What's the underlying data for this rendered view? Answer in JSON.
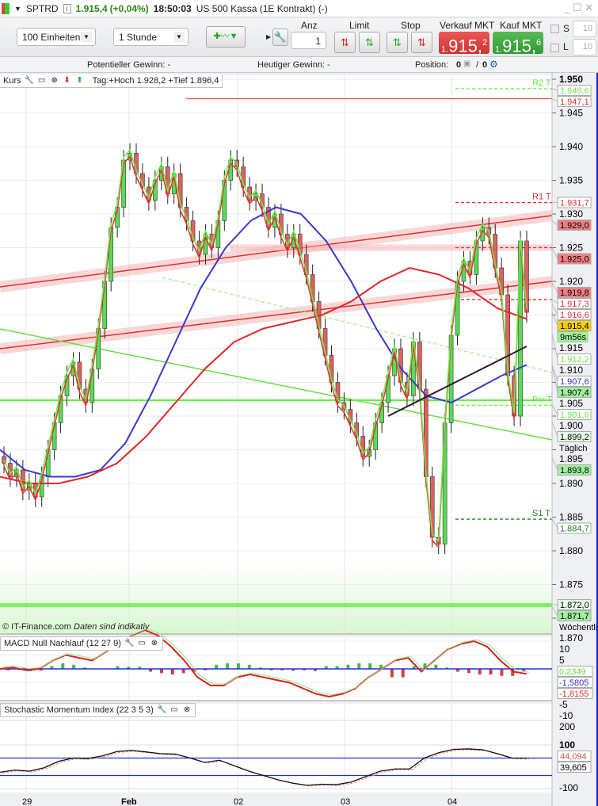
{
  "title": {
    "symbol": "SPTRD",
    "price": "1.915,4",
    "change": "(+0,04%)",
    "time": "18:50:03",
    "instrument": "US 500 Kassa (1E Kontrakt) (-)"
  },
  "toolbar": {
    "units": "100 Einheiten",
    "interval": "1 Stunde",
    "anz_label": "Anz",
    "anz_value": "1",
    "limit_label": "Limit",
    "stop_label": "Stop",
    "sell_label": "Verkauf MKT",
    "sell_prefix": "1.",
    "sell_main": "915,",
    "sell_frac": "2",
    "buy_label": "Kauf MKT",
    "buy_prefix": "1.",
    "buy_main": "915,",
    "buy_frac": "6",
    "s_label": "S",
    "s_value": "10",
    "l_label": "L",
    "l_value": "10"
  },
  "infobar": {
    "potential": "Potentieller Gewinn:  -",
    "today": "Heutiger Gewinn:  -",
    "position": "Position:",
    "pos_a": "0",
    "pos_sep": "/",
    "pos_b": "0"
  },
  "price_panel": {
    "name": "Kurs",
    "daily": "Tag:+Hoch 1.928,2 +Tief 1.896,4",
    "copyright": "© IT-Finance.com",
    "disclaimer": "Daten sind indikativ",
    "axis_ticks": [
      "1.950",
      "1.945",
      "1.940",
      "1.935",
      "1.930",
      "1.925",
      "1.920",
      "1.915",
      "1.910",
      "1.905",
      "1.900",
      "1.895",
      "1.890",
      "1.885",
      "1.880",
      "1.875",
      "1.870"
    ],
    "levels": [
      {
        "text": "1.948,6",
        "price": 1948.6,
        "tag": "R2 T",
        "color": "#66ee44",
        "style": "dash"
      },
      {
        "text": "1.947,1",
        "price": 1947.1,
        "tag": "",
        "color": "#e03030",
        "style": "solid"
      },
      {
        "text": "1.931,7",
        "price": 1931.7,
        "tag": "R1 T",
        "color": "#e03030",
        "style": "dash"
      },
      {
        "text": "1.929,0",
        "price": 1929.0,
        "tag": "",
        "color": "#e03030",
        "style": "none",
        "fill": "#f08080"
      },
      {
        "text": "1.925,0",
        "price": 1925.0,
        "tag": "",
        "color": "#e03030",
        "style": "dash",
        "fill": "#f08080"
      },
      {
        "text": "1.919,8",
        "price": 1919.8,
        "tag": "",
        "color": "#e03030",
        "style": "none",
        "fill": "#f08080"
      },
      {
        "text": "1.917,3",
        "price": 1917.3,
        "tag": "",
        "color": "#e03030",
        "style": "dash"
      },
      {
        "text": "1.916,6",
        "price": 1916.6,
        "tag": "",
        "color": "#e03030",
        "style": "none"
      },
      {
        "text": "1.915,4",
        "price": 1915.4,
        "tag": "",
        "color": "#000",
        "style": "none",
        "fill": "#ffd000"
      },
      {
        "text": "1.912,2",
        "price": 1912.2,
        "tag": "",
        "color": "#66ee44",
        "style": "none"
      },
      {
        "text": "1.907,6",
        "price": 1907.6,
        "tag": "",
        "color": "#3030c0",
        "style": "none"
      },
      {
        "text": "1.907,4",
        "price": 1907.4,
        "tag": "",
        "color": "#000",
        "style": "none",
        "fill": "#a0f0a0"
      },
      {
        "text": "1.901,6",
        "price": 1901.6,
        "tag": "Piv T",
        "color": "#66ee44",
        "style": "dash"
      },
      {
        "text": "1.899,2",
        "price": 1899.2,
        "tag": "",
        "color": "#000",
        "style": "none",
        "fill": "#e8ffe8"
      },
      {
        "text": "1.893,8",
        "price": 1893.8,
        "tag": "",
        "color": "#000",
        "style": "none",
        "fill": "#a0f0a0"
      },
      {
        "text": "1.884,7",
        "price": 1884.7,
        "tag": "S1 T",
        "color": "#208020",
        "style": "dash"
      },
      {
        "text": "1.872,0",
        "price": 1872.0,
        "tag": "",
        "color": "#000",
        "style": "none",
        "fill": "#e8ffe8"
      },
      {
        "text": "1.871,7",
        "price": 1871.7,
        "tag": "",
        "color": "#000",
        "style": "none",
        "fill": "#a0f0a0"
      }
    ],
    "timer": "9m56s",
    "daily_label": "Täglich",
    "weekly_label": "Wöchentli",
    "closes": [
      1893,
      1891,
      1892,
      1889,
      1890,
      1888,
      1891,
      1895,
      1899,
      1903,
      1906,
      1908,
      1904,
      1902,
      1907,
      1913,
      1920,
      1928,
      1931,
      1938,
      1939,
      1936,
      1934,
      1932,
      1935,
      1937,
      1933,
      1936,
      1931,
      1929,
      1926,
      1924,
      1927,
      1925,
      1929,
      1935,
      1938,
      1937,
      1934,
      1932,
      1933,
      1931,
      1928,
      1930,
      1927,
      1925,
      1927,
      1924,
      1921,
      1917,
      1913,
      1909,
      1905,
      1902,
      1901,
      1899,
      1897,
      1894,
      1895,
      1899,
      1902,
      1906,
      1910,
      1905,
      1903,
      1911,
      1904,
      1891,
      1882,
      1881,
      1899,
      1912,
      1920,
      1923,
      1921,
      1926,
      1928,
      1927,
      1922,
      1918,
      1906,
      1900,
      1926,
      1915.4
    ],
    "blue_ma": [
      1895,
      1892,
      1891,
      1891,
      1892,
      1896,
      1903,
      1911,
      1919,
      1925,
      1929,
      1931,
      1930,
      1926,
      1920,
      1913,
      1907,
      1903,
      1902,
      1904,
      1906,
      1907.6
    ],
    "red_ma": [
      1891,
      1890,
      1890,
      1891,
      1893,
      1897,
      1902,
      1907,
      1911,
      1913,
      1914,
      1915,
      1917,
      1920,
      1922,
      1921,
      1919,
      1916,
      1914.4
    ]
  },
  "macd_panel": {
    "name": "MACD Null Nachlauf (12 27 9)",
    "axis_ticks": [
      "10",
      "5",
      "-5",
      "-10"
    ],
    "labels": [
      "0,2349",
      "-1,5805",
      "-1,8155"
    ],
    "macd": [
      0,
      0.5,
      -0.5,
      0,
      3,
      5,
      4,
      3,
      6,
      9,
      12,
      14,
      12,
      8,
      3,
      -3,
      -6,
      -6,
      -3,
      -2,
      -3,
      -4,
      -5,
      -7,
      -9,
      -10,
      -9,
      -7,
      -3,
      0,
      3,
      4,
      -1,
      3,
      7,
      9,
      10,
      8,
      3,
      -1,
      -1.8
    ],
    "hist": [
      -0.5,
      -0.3,
      -0.8,
      -0.6,
      1,
      2,
      1.5,
      0.5,
      0,
      0,
      1,
      0.8,
      0.8,
      -1,
      -1.5,
      -2,
      -1.5,
      -1,
      -0.5,
      1.5,
      2,
      2,
      1.5,
      0.5,
      -0.5,
      -0.5,
      -0.7,
      -0.5,
      -0.8,
      1,
      1,
      1.5,
      2,
      2,
      1.5,
      -3,
      -3,
      1,
      2,
      1.5,
      0.5,
      -1,
      -1.5,
      -2,
      -2,
      -2.5,
      -2.5,
      -1
    ]
  },
  "smi_panel": {
    "name": "Stochastic Momentum Index (22 3 5 3)",
    "axis_ticks": [
      "200",
      "100",
      "-100"
    ],
    "labels": [
      "44,094",
      "39,605"
    ],
    "values": [
      -25,
      -15,
      -20,
      -5,
      25,
      40,
      38,
      50,
      70,
      75,
      68,
      60,
      58,
      40,
      20,
      30,
      5,
      -20,
      -40,
      -60,
      -75,
      -85,
      -80,
      -82,
      -70,
      -45,
      -20,
      -10,
      -10,
      40,
      65,
      80,
      82,
      78,
      60,
      40,
      39.6
    ]
  },
  "xaxis": [
    "29",
    "Feb",
    "02",
    "03",
    "04"
  ]
}
